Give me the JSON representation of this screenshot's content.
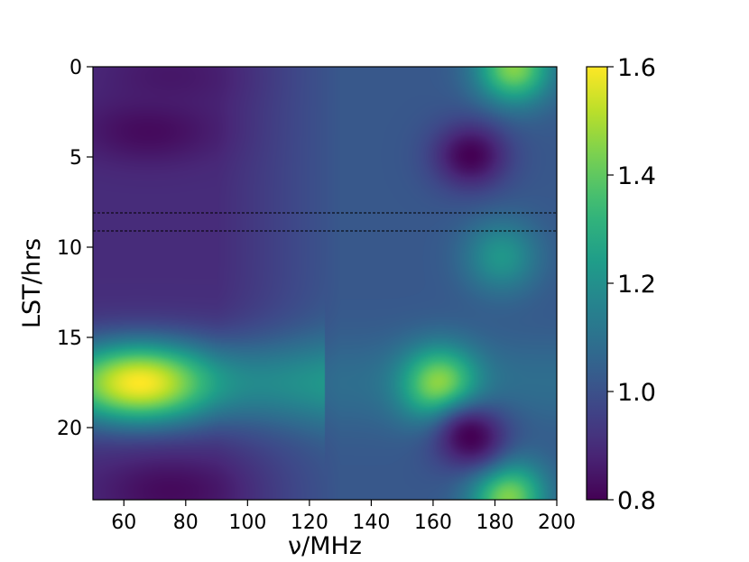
{
  "chart_data": {
    "type": "heatmap",
    "xlabel": "ν/MHz",
    "ylabel": "LST/hrs",
    "xlim": [
      50,
      200
    ],
    "ylim": [
      24,
      0
    ],
    "x_ticks": [
      60,
      80,
      100,
      120,
      140,
      160,
      180,
      200
    ],
    "y_ticks": [
      0,
      5,
      10,
      15,
      20
    ],
    "colorbar": {
      "vmin": 0.8,
      "vmax": 1.6,
      "colormap": "viridis",
      "ticks": [
        "0.8",
        "1.0",
        "1.2",
        "1.4",
        "1.6"
      ]
    },
    "reference_lines": [
      {
        "lst": 8.1,
        "style": "dashed",
        "color": "#000000"
      },
      {
        "lst": 9.1,
        "style": "dashed",
        "color": "#000000"
      }
    ],
    "features": [
      {
        "freq": 65,
        "lst": 17.5,
        "value": 1.6
      },
      {
        "freq": 162,
        "lst": 17.6,
        "value": 1.48
      },
      {
        "freq": 186,
        "lst": 0.0,
        "value": 1.45
      },
      {
        "freq": 184,
        "lst": 23.8,
        "value": 1.45
      },
      {
        "freq": 182,
        "lst": 10.5,
        "value": 1.22
      },
      {
        "freq": 68,
        "lst": 3.5,
        "value": 0.82
      },
      {
        "freq": 172,
        "lst": 4.9,
        "value": 0.8
      },
      {
        "freq": 172,
        "lst": 20.5,
        "value": 0.8
      },
      {
        "freq": 75,
        "lst": 0.5,
        "value": 0.85
      },
      {
        "freq": 75,
        "lst": 23.5,
        "value": 0.82
      }
    ]
  }
}
